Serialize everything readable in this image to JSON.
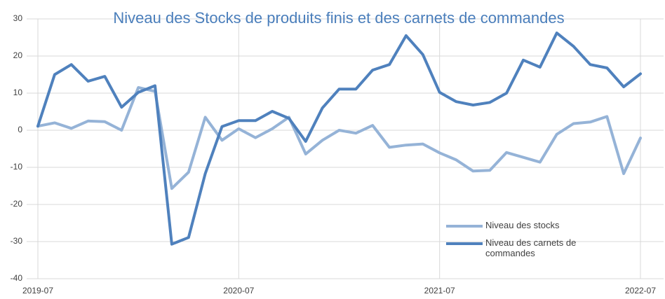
{
  "chart_data": {
    "type": "line",
    "title": "Niveau des Stocks de produits finis et des carnets de commandes",
    "categories": [
      "2019-07",
      null,
      null,
      null,
      null,
      null,
      null,
      null,
      null,
      null,
      null,
      null,
      "2020-07",
      null,
      null,
      null,
      null,
      null,
      null,
      null,
      null,
      null,
      null,
      null,
      "2021-07",
      null,
      null,
      null,
      null,
      null,
      null,
      null,
      null,
      null,
      null,
      null,
      "2022-07"
    ],
    "series": [
      {
        "name": "Niveau des stocks",
        "color": "#95b3d7",
        "values": [
          1.1,
          2,
          0.5,
          2.5,
          2.3,
          0,
          11.5,
          10.5,
          -15.7,
          -11.3,
          3.5,
          -2.7,
          0.4,
          -2,
          0.4,
          3.5,
          -6.4,
          -2.7,
          0,
          -0.8,
          1.3,
          -4.6,
          -4,
          -3.7,
          -6.1,
          -8,
          -11,
          -10.8,
          -6,
          -7.3,
          -8.6,
          -1.1,
          1.8,
          2.2,
          3.7,
          -11.7,
          -2.1
        ]
      },
      {
        "name": "Niveau des carnets de commandes",
        "color": "#4f81bd",
        "values": [
          1.1,
          15,
          17.7,
          13.2,
          14.5,
          6.2,
          10.2,
          12,
          -30.7,
          -28.9,
          -11.7,
          1,
          2.6,
          2.6,
          5.1,
          3.2,
          -3,
          6,
          11.1,
          11.1,
          16.2,
          17.7,
          25.5,
          20.4,
          10.2,
          7.7,
          6.8,
          7.5,
          10,
          18.9,
          17,
          26.2,
          22.6,
          17.7,
          16.8,
          11.7,
          15.2
        ]
      }
    ],
    "ylim": [
      -40,
      30
    ],
    "yticks": [
      -40,
      -30,
      -20,
      -10,
      0,
      10,
      20,
      30
    ],
    "grid": true,
    "legend": "lower right"
  }
}
